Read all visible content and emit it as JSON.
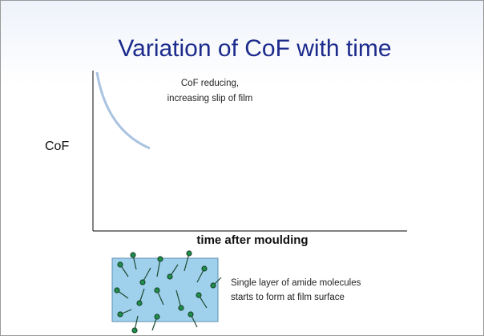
{
  "title": "Variation of CoF with time",
  "y_axis_label": "CoF",
  "x_axis_label": "time after moulding",
  "annotation": {
    "lines": [
      "CoF reducing,",
      "increasing slip of film"
    ]
  },
  "caption": {
    "lines": [
      "Single layer of amide molecules",
      "starts to form at film surface"
    ]
  }
}
